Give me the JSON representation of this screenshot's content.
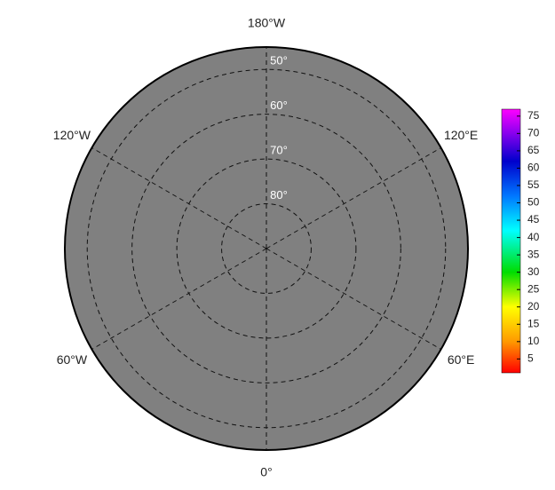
{
  "map": {
    "projection": "north-polar",
    "boundary_lat": 45,
    "background": "#808080",
    "lon_lines": [
      0,
      60,
      120,
      180,
      -120,
      -60
    ],
    "lon_labels": [
      {
        "value": 180,
        "label": "180°W"
      },
      {
        "value": 120,
        "label": "120°E"
      },
      {
        "value": 60,
        "label": "60°E"
      },
      {
        "value": 0,
        "label": "0°"
      },
      {
        "value": -60,
        "label": "60°W"
      },
      {
        "value": -120,
        "label": "120°W"
      }
    ],
    "lat_circles": [
      {
        "value": 50,
        "label": "50°"
      },
      {
        "value": 60,
        "label": "60°"
      },
      {
        "value": 70,
        "label": "70°"
      },
      {
        "value": 80,
        "label": "80°"
      }
    ]
  },
  "colorbar": {
    "lim": [
      1,
      77
    ],
    "ticks": [
      5,
      10,
      15,
      20,
      25,
      30,
      35,
      40,
      45,
      50,
      55,
      60,
      65,
      70,
      75
    ],
    "colorscale": [
      {
        "value": 1,
        "color": "#ff0000"
      },
      {
        "value": 10,
        "color": "#ff9900"
      },
      {
        "value": 20,
        "color": "#ffff00"
      },
      {
        "value": 30,
        "color": "#00dd00"
      },
      {
        "value": 42,
        "color": "#00ffff"
      },
      {
        "value": 52,
        "color": "#0077ff"
      },
      {
        "value": 62,
        "color": "#0000cc"
      },
      {
        "value": 70,
        "color": "#8800ee"
      },
      {
        "value": 77,
        "color": "#ff00ff"
      }
    ]
  }
}
